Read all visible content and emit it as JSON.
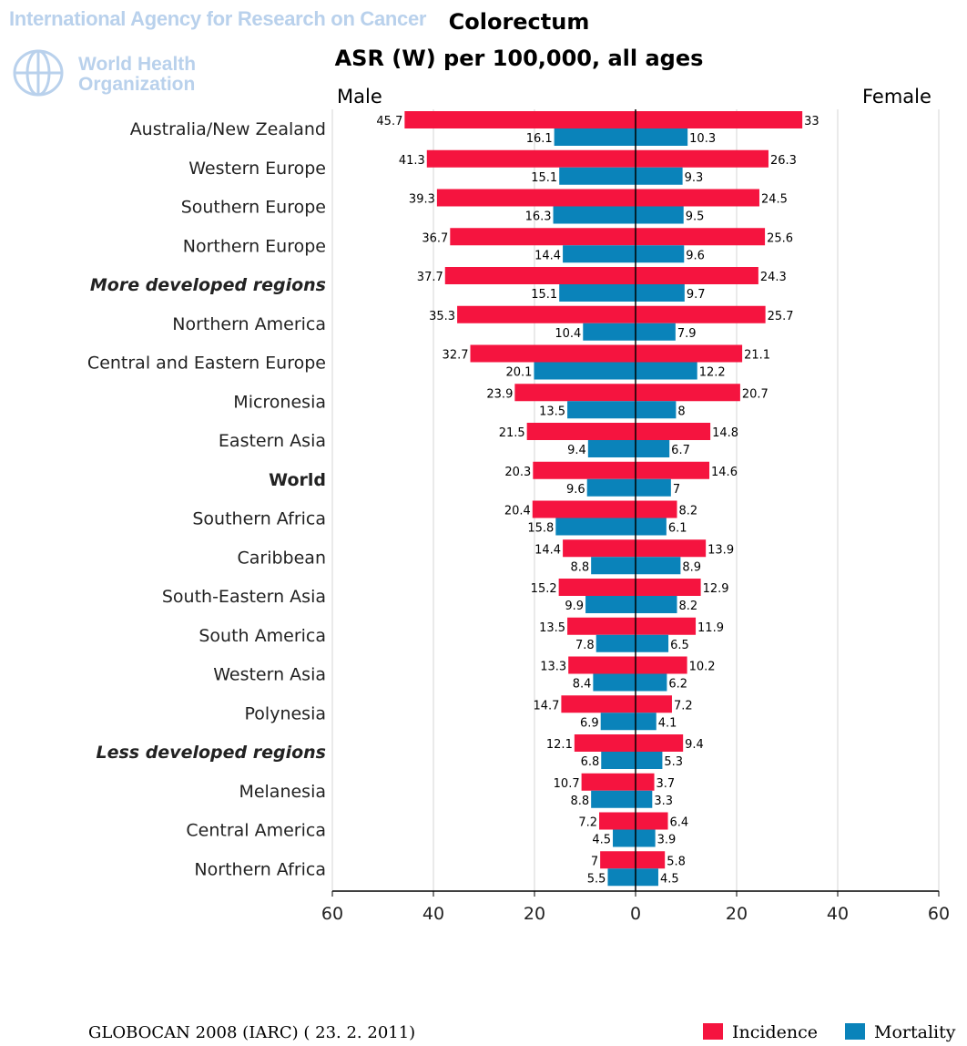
{
  "header": {
    "org": "International Agency for Research on Cancer",
    "who_line1": "World Health",
    "who_line2": "Organization"
  },
  "footer": {
    "source": "GLOBOCAN 2008 (IARC) ( 23. 2. 2011)"
  },
  "colors": {
    "incidence": "#f5143f",
    "mortality": "#0a83ba"
  },
  "chart_data": {
    "type": "bar",
    "orientation": "horizontal-diverging",
    "title": "Colorectum",
    "subtitle": "ASR (W) per 100,000, all ages",
    "left_label": "Male",
    "right_label": "Female",
    "xlim": [
      -60,
      60
    ],
    "x_ticks": [
      -60,
      -40,
      -20,
      0,
      20,
      40,
      60
    ],
    "x_tick_labels": [
      "60",
      "40",
      "20",
      "0",
      "20",
      "40",
      "60"
    ],
    "grid": true,
    "legend_position": "bottom-right",
    "legend": [
      "Incidence",
      "Mortality"
    ],
    "categories": [
      "Australia/New Zealand",
      "Western Europe",
      "Southern Europe",
      "Northern Europe",
      "More developed regions",
      "Northern America",
      "Central and Eastern Europe",
      "Micronesia",
      "Eastern Asia",
      "World",
      "Southern Africa",
      "Caribbean",
      "South-Eastern Asia",
      "South America",
      "Western Asia",
      "Polynesia",
      "Less developed regions",
      "Melanesia",
      "Central America",
      "Northern Africa"
    ],
    "category_style": [
      "normal",
      "normal",
      "normal",
      "normal",
      "bold-italic",
      "normal",
      "normal",
      "normal",
      "normal",
      "bold",
      "normal",
      "normal",
      "normal",
      "normal",
      "normal",
      "normal",
      "bold-italic",
      "normal",
      "normal",
      "normal"
    ],
    "series": [
      {
        "name": "Incidence",
        "sex": "Male",
        "values": [
          45.7,
          41.3,
          39.3,
          36.7,
          37.7,
          35.3,
          32.7,
          23.9,
          21.5,
          20.3,
          20.4,
          14.4,
          15.2,
          13.5,
          13.3,
          14.7,
          12.1,
          10.7,
          7.2,
          7
        ],
        "labels": [
          "45.7",
          "41.3",
          "39.3",
          "36.7",
          "37.7",
          "35.3",
          "32.7",
          "23.9",
          "21.5",
          "20.3",
          "20.4",
          "14.4",
          "15.2",
          "13.5",
          "13.3",
          "14.7",
          "12.1",
          "10.7",
          "7.2",
          "7"
        ]
      },
      {
        "name": "Mortality",
        "sex": "Male",
        "values": [
          16.1,
          15.1,
          16.3,
          14.4,
          15.1,
          10.4,
          20.1,
          13.5,
          9.4,
          9.6,
          15.8,
          8.8,
          9.9,
          7.8,
          8.4,
          6.9,
          6.8,
          8.8,
          4.5,
          5.5
        ],
        "labels": [
          "16.1",
          "15.1",
          "16.3",
          "14.4",
          "15.1",
          "10.4",
          "20.1",
          "13.5",
          "9.4",
          "9.6",
          "15.8",
          "8.8",
          "9.9",
          "7.8",
          "8.4",
          "6.9",
          "6.8",
          "8.8",
          "4.5",
          "5.5"
        ]
      },
      {
        "name": "Incidence",
        "sex": "Female",
        "values": [
          33,
          26.3,
          24.5,
          25.6,
          24.3,
          25.7,
          21.1,
          20.7,
          14.8,
          14.6,
          8.2,
          13.9,
          12.9,
          11.9,
          10.2,
          7.2,
          9.4,
          3.7,
          6.4,
          5.8
        ],
        "labels": [
          "33",
          "26.3",
          "24.5",
          "25.6",
          "24.3",
          "25.7",
          "21.1",
          "20.7",
          "14.8",
          "14.6",
          "8.2",
          "13.9",
          "12.9",
          "11.9",
          "10.2",
          "7.2",
          "9.4",
          "3.7",
          "6.4",
          "5.8"
        ]
      },
      {
        "name": "Mortality",
        "sex": "Female",
        "values": [
          10.3,
          9.3,
          9.5,
          9.6,
          9.7,
          7.9,
          12.2,
          8,
          6.7,
          7,
          6.1,
          8.9,
          8.2,
          6.5,
          6.2,
          4.1,
          5.3,
          3.3,
          3.9,
          4.5
        ],
        "labels": [
          "10.3",
          "9.3",
          "9.5",
          "9.6",
          "9.7",
          "7.9",
          "12.2",
          "8",
          "6.7",
          "7",
          "6.1",
          "8.9",
          "8.2",
          "6.5",
          "6.2",
          "4.1",
          "5.3",
          "3.3",
          "3.9",
          "4.5"
        ]
      }
    ]
  }
}
